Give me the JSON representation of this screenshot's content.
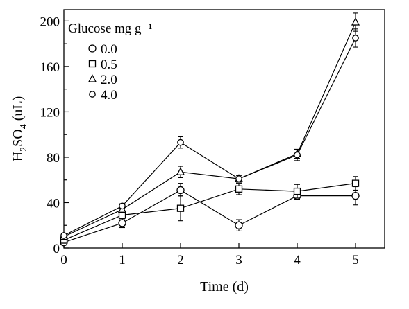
{
  "chart_data": {
    "type": "line",
    "xlabel": "Time (d)",
    "ylabel": {
      "base": "H",
      "sub1": "2",
      "mid": "SO",
      "sub2": "4",
      "tail": " (uL)"
    },
    "x": [
      0,
      1,
      2,
      3,
      4,
      5
    ],
    "xlim": [
      0,
      5.5
    ],
    "ylim": [
      0,
      210
    ],
    "xticks": [
      "0",
      "1",
      "2",
      "3",
      "4",
      "5"
    ],
    "yticks": [
      "0",
      "40",
      "80",
      "120",
      "160",
      "200"
    ],
    "grid": false,
    "legend": {
      "title": "Glucose mg g⁻¹",
      "placement": "top-left"
    },
    "series": [
      {
        "name": "0.0",
        "marker": "circle",
        "values": [
          5,
          22,
          51,
          20,
          46,
          46
        ],
        "errors": [
          2,
          4,
          6,
          5,
          3,
          8
        ]
      },
      {
        "name": "0.5",
        "marker": "square",
        "values": [
          7,
          29,
          35,
          52,
          50,
          57
        ],
        "errors": [
          2,
          4,
          11,
          5,
          6,
          6
        ]
      },
      {
        "name": "2.0",
        "marker": "triangle",
        "values": [
          10,
          34,
          67,
          61,
          83,
          199
        ],
        "errors": [
          2,
          3,
          5,
          3,
          4,
          8
        ]
      },
      {
        "name": "4.0",
        "marker": "circle-small",
        "values": [
          11,
          37,
          93,
          61,
          82,
          185
        ],
        "errors": [
          2,
          2,
          5,
          3,
          5,
          8
        ]
      }
    ]
  }
}
